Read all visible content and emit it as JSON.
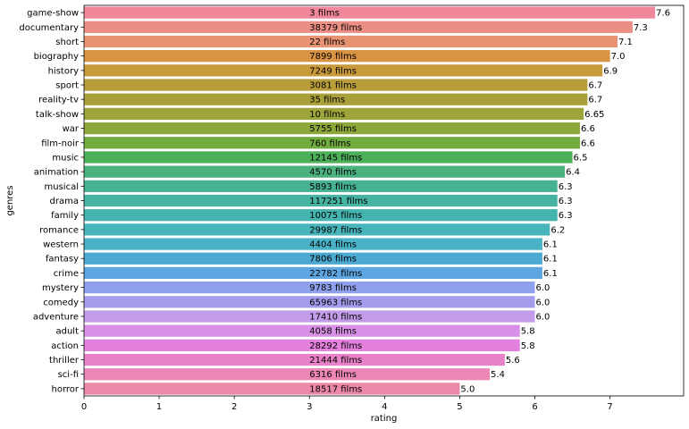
{
  "chart_data": {
    "type": "bar",
    "orientation": "horizontal",
    "xlabel": "rating",
    "ylabel": "genres",
    "xlim": [
      0,
      7.98
    ],
    "xticks": [
      0,
      1,
      2,
      3,
      4,
      5,
      6,
      7
    ],
    "grid": false,
    "legend": "none",
    "film_count_label_x": 3,
    "categories": [
      "game-show",
      "documentary",
      "short",
      "biography",
      "history",
      "sport",
      "reality-tv",
      "talk-show",
      "war",
      "film-noir",
      "music",
      "animation",
      "musical",
      "drama",
      "family",
      "romance",
      "western",
      "fantasy",
      "crime",
      "mystery",
      "comedy",
      "adventure",
      "adult",
      "action",
      "thriller",
      "sci-fi",
      "horror"
    ],
    "values": [
      7.6,
      7.3,
      7.1,
      7.0,
      6.9,
      6.7,
      6.7,
      6.65,
      6.6,
      6.6,
      6.5,
      6.4,
      6.3,
      6.3,
      6.3,
      6.2,
      6.1,
      6.1,
      6.1,
      6.0,
      6.0,
      6.0,
      5.8,
      5.8,
      5.6,
      5.4,
      5.0
    ],
    "value_labels": [
      "7.6",
      "7.3",
      "7.1",
      "7.0",
      "6.9",
      "6.7",
      "6.7",
      "6.65",
      "6.6",
      "6.6",
      "6.5",
      "6.4",
      "6.3",
      "6.3",
      "6.3",
      "6.2",
      "6.1",
      "6.1",
      "6.1",
      "6.0",
      "6.0",
      "6.0",
      "5.8",
      "5.8",
      "5.6",
      "5.4",
      "5.0"
    ],
    "count_labels": [
      "3 films",
      "38379 films",
      "22 films",
      "7899 films",
      "7249 films",
      "3081 films",
      "35 films",
      "10 films",
      "5755 films",
      "760 films",
      "12145 films",
      "4570 films",
      "5893 films",
      "117251 films",
      "10075 films",
      "29987 films",
      "4404 films",
      "7806 films",
      "22782 films",
      "9783 films",
      "65963 films",
      "17410 films",
      "4058 films",
      "28292 films",
      "21444 films",
      "6316 films",
      "18517 films"
    ],
    "colors": [
      "#f0879b",
      "#eb8f84",
      "#e89372",
      "#d99443",
      "#c99a3c",
      "#b89d3a",
      "#aaa03a",
      "#9ca43a",
      "#8ca83a",
      "#71ad3e",
      "#4bb059",
      "#4ab17f",
      "#47b292",
      "#47b3a2",
      "#46b4ae",
      "#47b5bb",
      "#49b2c6",
      "#4ba9d2",
      "#5ea6e2",
      "#8fa1ed",
      "#a69ced",
      "#c29be9",
      "#d790e5",
      "#e480de",
      "#ea82c9",
      "#ec86b5",
      "#ec88a9"
    ]
  }
}
